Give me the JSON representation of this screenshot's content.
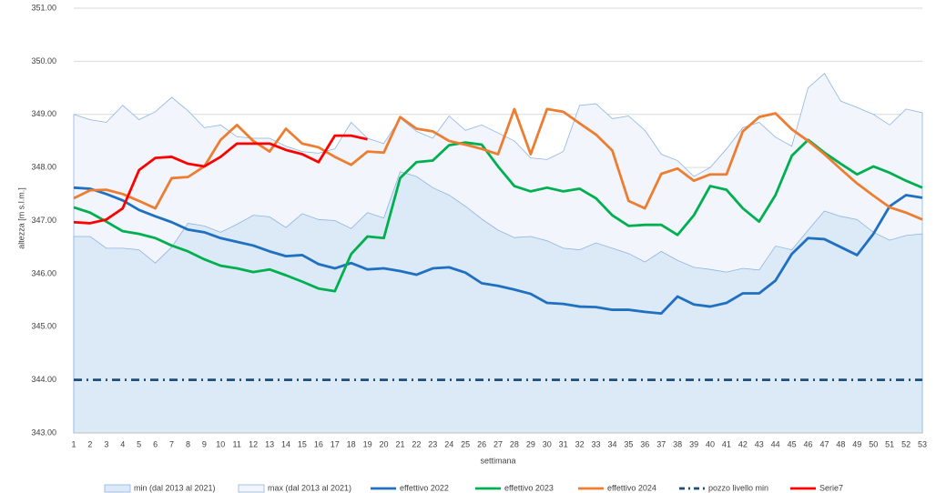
{
  "chart_data": {
    "type": "line",
    "x_label": "settimana",
    "y_label": "altezza [m s.l.m.]",
    "categories": [
      "1",
      "2",
      "3",
      "4",
      "5",
      "6",
      "7",
      "8",
      "9",
      "10",
      "11",
      "12",
      "13",
      "14",
      "15",
      "16",
      "17",
      "18",
      "19",
      "20",
      "21",
      "22",
      "23",
      "24",
      "25",
      "26",
      "27",
      "28",
      "29",
      "30",
      "31",
      "32",
      "33",
      "34",
      "35",
      "36",
      "37",
      "38",
      "39",
      "40",
      "41",
      "42",
      "43",
      "44",
      "45",
      "46",
      "47",
      "48",
      "49",
      "50",
      "51",
      "52",
      "53"
    ],
    "ylim": [
      343,
      351
    ],
    "yticks": [
      {
        "value": 343,
        "label": "343.00"
      },
      {
        "value": 344,
        "label": "344.00"
      },
      {
        "value": 345,
        "label": "345.00"
      },
      {
        "value": 346,
        "label": "346.00"
      },
      {
        "value": 347,
        "label": "347.00"
      },
      {
        "value": 348,
        "label": "348.00"
      },
      {
        "value": 349,
        "label": "349.00"
      },
      {
        "value": 350,
        "label": "350.00"
      },
      {
        "value": 351,
        "label": "351.00"
      }
    ],
    "grid": true,
    "legend": "bottom",
    "series": [
      {
        "name": "max (dal 2013 al 2021)",
        "style": "area",
        "color": "#8db4e2",
        "fill": "#f2f6fc",
        "values": [
          349.0,
          348.9,
          348.85,
          349.17,
          348.9,
          349.05,
          349.32,
          349.07,
          348.75,
          348.8,
          348.58,
          348.55,
          348.55,
          348.4,
          348.3,
          348.27,
          348.35,
          348.85,
          348.55,
          348.45,
          348.93,
          348.68,
          348.55,
          348.97,
          348.7,
          348.8,
          348.65,
          348.5,
          348.18,
          348.15,
          348.3,
          349.17,
          349.2,
          348.92,
          348.97,
          348.7,
          348.25,
          348.13,
          347.83,
          348.0,
          348.35,
          348.75,
          348.85,
          348.57,
          348.4,
          349.5,
          349.77,
          349.25,
          349.13,
          349.0,
          348.8,
          349.1,
          349.03
        ]
      },
      {
        "name": "min (dal 2013 al 2021)",
        "style": "area",
        "color": "#8db4e2",
        "fill": "#dce9f6",
        "values": [
          346.7,
          346.7,
          346.48,
          346.48,
          346.45,
          346.2,
          346.5,
          346.95,
          346.9,
          346.78,
          346.93,
          347.1,
          347.07,
          346.87,
          347.13,
          347.02,
          347.0,
          346.85,
          347.15,
          347.05,
          347.92,
          347.83,
          347.62,
          347.48,
          347.27,
          347.03,
          346.82,
          346.68,
          346.7,
          346.62,
          346.48,
          346.45,
          346.58,
          346.48,
          346.38,
          346.22,
          346.42,
          346.25,
          346.12,
          346.08,
          346.03,
          346.1,
          346.07,
          346.52,
          346.45,
          346.82,
          347.18,
          347.08,
          347.02,
          346.78,
          346.63,
          346.72,
          346.75
        ]
      },
      {
        "name": "effettivo 2022",
        "style": "line",
        "color": "#1f70c1",
        "values": [
          347.62,
          347.6,
          347.5,
          347.38,
          347.2,
          347.08,
          346.97,
          346.83,
          346.78,
          346.67,
          346.6,
          346.53,
          346.42,
          346.33,
          346.35,
          346.18,
          346.1,
          346.2,
          346.08,
          346.1,
          346.05,
          345.98,
          346.1,
          346.12,
          346.02,
          345.82,
          345.77,
          345.7,
          345.62,
          345.45,
          345.43,
          345.38,
          345.37,
          345.32,
          345.32,
          345.28,
          345.25,
          345.57,
          345.42,
          345.38,
          345.45,
          345.63,
          345.63,
          345.87,
          346.37,
          346.67,
          346.65,
          346.5,
          346.35,
          346.75,
          347.27,
          347.48,
          347.43
        ]
      },
      {
        "name": "effettivo 2023",
        "style": "line",
        "color": "#00b050",
        "values": [
          347.25,
          347.15,
          346.98,
          346.8,
          346.75,
          346.67,
          346.53,
          346.42,
          346.27,
          346.15,
          346.1,
          346.03,
          346.08,
          345.97,
          345.85,
          345.72,
          345.67,
          346.37,
          346.7,
          346.67,
          347.8,
          348.1,
          348.13,
          348.42,
          348.47,
          348.43,
          348.02,
          347.65,
          347.55,
          347.62,
          347.55,
          347.6,
          347.42,
          347.1,
          346.9,
          346.92,
          346.92,
          346.73,
          347.1,
          347.65,
          347.58,
          347.23,
          346.98,
          347.48,
          348.22,
          348.52,
          348.28,
          348.07,
          347.87,
          348.02,
          347.9,
          347.75,
          347.62
        ]
      },
      {
        "name": "effettivo 2024",
        "style": "line",
        "color": "#ed7d31",
        "values": [
          347.42,
          347.57,
          347.58,
          347.5,
          347.37,
          347.23,
          347.8,
          347.82,
          348.02,
          348.52,
          348.8,
          348.5,
          348.3,
          348.73,
          348.45,
          348.38,
          348.2,
          348.05,
          348.3,
          348.28,
          348.95,
          348.73,
          348.68,
          348.5,
          348.43,
          348.35,
          348.25,
          349.1,
          348.25,
          349.1,
          349.05,
          348.83,
          348.62,
          348.32,
          347.37,
          347.23,
          347.88,
          347.98,
          347.75,
          347.87,
          347.87,
          348.68,
          348.95,
          349.02,
          348.72,
          348.5,
          348.25,
          347.97,
          347.7,
          347.47,
          347.25,
          347.15,
          347.02
        ]
      },
      {
        "name": "pozzo livello min",
        "style": "dashdot",
        "color": "#1f4e79",
        "values": [
          344,
          344,
          344,
          344,
          344,
          344,
          344,
          344,
          344,
          344,
          344,
          344,
          344,
          344,
          344,
          344,
          344,
          344,
          344,
          344,
          344,
          344,
          344,
          344,
          344,
          344,
          344,
          344,
          344,
          344,
          344,
          344,
          344,
          344,
          344,
          344,
          344,
          344,
          344,
          344,
          344,
          344,
          344,
          344,
          344,
          344,
          344,
          344,
          344,
          344,
          344,
          344,
          344
        ]
      },
      {
        "name": "Serie7",
        "style": "line",
        "color": "#ff0000",
        "values": [
          346.97,
          346.95,
          347.02,
          347.23,
          347.95,
          348.18,
          348.2,
          348.07,
          348.02,
          348.2,
          348.45,
          348.45,
          348.45,
          348.33,
          348.25,
          348.1,
          348.6,
          348.6,
          348.53,
          null,
          null,
          null,
          null,
          null,
          null,
          null,
          null,
          null,
          null,
          null,
          null,
          null,
          null,
          null,
          null,
          null,
          null,
          null,
          null,
          null,
          null,
          null,
          null,
          null,
          null,
          null,
          null,
          null,
          null,
          null,
          null,
          null,
          null
        ]
      }
    ]
  }
}
